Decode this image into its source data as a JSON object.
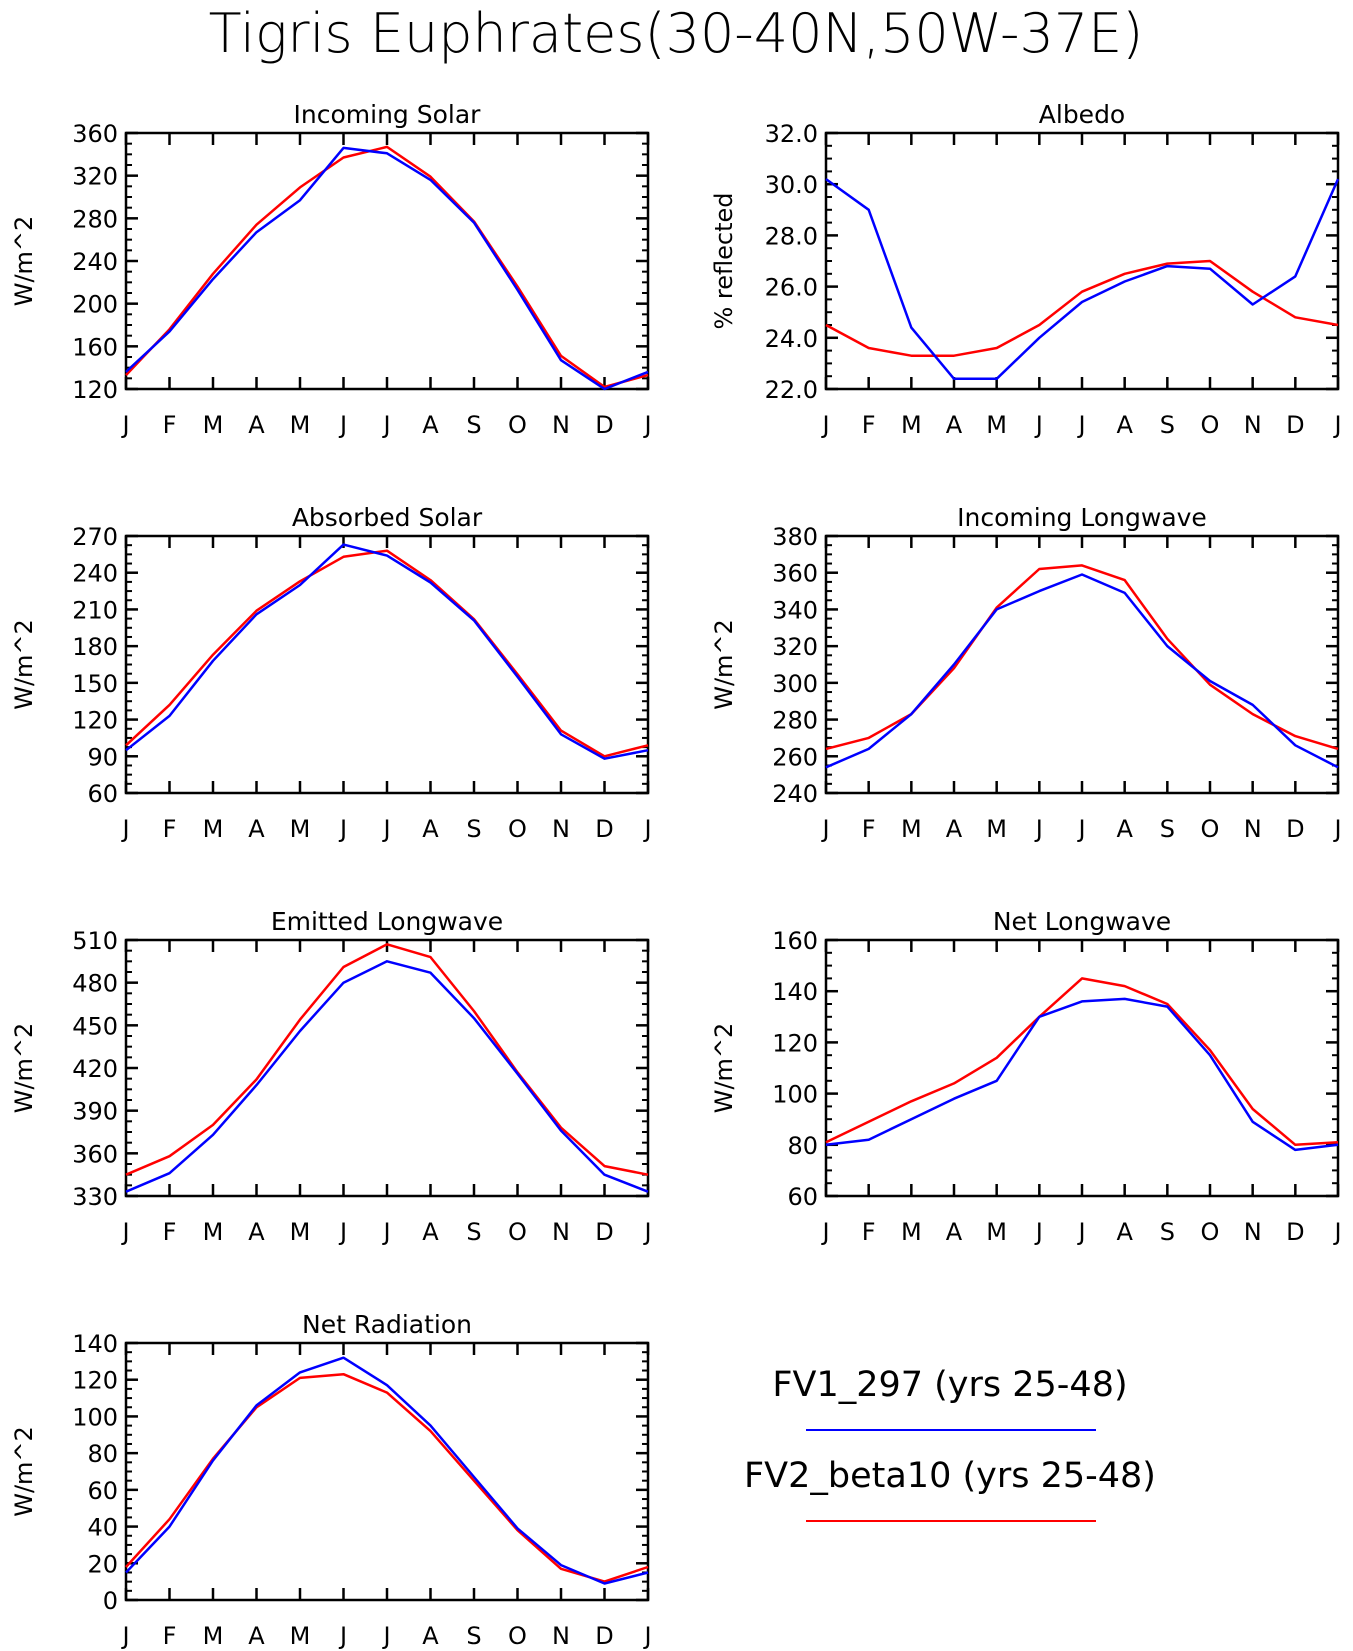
{
  "title": "Tigris Euphrates(30-40N,50W-37E)",
  "colors": {
    "series_1": "#0000ff",
    "series_2": "#ff0000",
    "axis": "#000000"
  },
  "legend": [
    {
      "label": "FV1_297 (yrs 25-48)",
      "color": "#0000ff"
    },
    {
      "label": "FV2_beta10 (yrs 25-48)",
      "color": "#ff0000"
    }
  ],
  "chart_data": [
    {
      "id": "incoming-solar",
      "type": "line",
      "title": "Incoming Solar",
      "ylabel": "W/m^2",
      "categories": [
        "J",
        "F",
        "M",
        "A",
        "M",
        "J",
        "J",
        "A",
        "S",
        "O",
        "N",
        "D",
        "J"
      ],
      "ylim": [
        120,
        360
      ],
      "yticks": [
        "120",
        "160",
        "200",
        "240",
        "280",
        "320",
        "360"
      ],
      "series": [
        {
          "name": "FV1_297 (yrs 25-48)",
          "color": "#0000ff",
          "values": [
            136,
            174,
            223,
            267,
            297,
            346,
            341,
            316,
            276,
            213,
            147,
            120,
            136
          ]
        },
        {
          "name": "FV2_beta10 (yrs 25-48)",
          "color": "#ff0000",
          "values": [
            133,
            176,
            228,
            274,
            309,
            337,
            347,
            319,
            277,
            216,
            151,
            122,
            133
          ]
        }
      ]
    },
    {
      "id": "albedo",
      "type": "line",
      "title": "Albedo",
      "ylabel": "% reflected",
      "categories": [
        "J",
        "F",
        "M",
        "A",
        "M",
        "J",
        "J",
        "A",
        "S",
        "O",
        "N",
        "D",
        "J"
      ],
      "ylim": [
        22.0,
        32.0
      ],
      "yticks": [
        "22.0",
        "24.0",
        "26.0",
        "28.0",
        "30.0",
        "32.0"
      ],
      "series": [
        {
          "name": "FV1_297 (yrs 25-48)",
          "color": "#0000ff",
          "values": [
            30.2,
            29.0,
            24.4,
            22.4,
            22.4,
            24.0,
            25.4,
            26.2,
            26.8,
            26.7,
            25.3,
            26.4,
            30.2
          ]
        },
        {
          "name": "FV2_beta10 (yrs 25-48)",
          "color": "#ff0000",
          "values": [
            24.5,
            23.6,
            23.3,
            23.3,
            23.6,
            24.5,
            25.8,
            26.5,
            26.9,
            27.0,
            25.8,
            24.8,
            24.5
          ]
        }
      ]
    },
    {
      "id": "absorbed-solar",
      "type": "line",
      "title": "Absorbed Solar",
      "ylabel": "W/m^2",
      "categories": [
        "J",
        "F",
        "M",
        "A",
        "M",
        "J",
        "J",
        "A",
        "S",
        "O",
        "N",
        "D",
        "J"
      ],
      "ylim": [
        60,
        270
      ],
      "yticks": [
        "60",
        "90",
        "120",
        "150",
        "180",
        "210",
        "240",
        "270"
      ],
      "series": [
        {
          "name": "FV1_297 (yrs 25-48)",
          "color": "#0000ff",
          "values": [
            95,
            123,
            168,
            206,
            230,
            263,
            254,
            232,
            201,
            155,
            108,
            88,
            95
          ]
        },
        {
          "name": "FV2_beta10 (yrs 25-48)",
          "color": "#ff0000",
          "values": [
            99,
            132,
            173,
            209,
            233,
            253,
            258,
            234,
            202,
            157,
            111,
            90,
            99
          ]
        }
      ]
    },
    {
      "id": "incoming-longwave",
      "type": "line",
      "title": "Incoming Longwave",
      "ylabel": "W/m^2",
      "categories": [
        "J",
        "F",
        "M",
        "A",
        "M",
        "J",
        "J",
        "A",
        "S",
        "O",
        "N",
        "D",
        "J"
      ],
      "ylim": [
        240,
        380
      ],
      "yticks": [
        "240",
        "260",
        "280",
        "300",
        "320",
        "340",
        "360",
        "380"
      ],
      "series": [
        {
          "name": "FV1_297 (yrs 25-48)",
          "color": "#0000ff",
          "values": [
            254,
            264,
            283,
            310,
            340,
            350,
            359,
            349,
            320,
            301,
            288,
            266,
            254
          ]
        },
        {
          "name": "FV2_beta10 (yrs 25-48)",
          "color": "#ff0000",
          "values": [
            264,
            270,
            283,
            308,
            341,
            362,
            364,
            356,
            324,
            299,
            283,
            271,
            264
          ]
        }
      ]
    },
    {
      "id": "emitted-longwave",
      "type": "line",
      "title": "Emitted Longwave",
      "ylabel": "W/m^2",
      "categories": [
        "J",
        "F",
        "M",
        "A",
        "M",
        "J",
        "J",
        "A",
        "S",
        "O",
        "N",
        "D",
        "J"
      ],
      "ylim": [
        330,
        510
      ],
      "yticks": [
        "330",
        "360",
        "390",
        "420",
        "450",
        "480",
        "510"
      ],
      "series": [
        {
          "name": "FV1_297 (yrs 25-48)",
          "color": "#0000ff",
          "values": [
            333,
            346,
            373,
            408,
            446,
            480,
            495,
            487,
            455,
            416,
            376,
            345,
            333
          ]
        },
        {
          "name": "FV2_beta10 (yrs 25-48)",
          "color": "#ff0000",
          "values": [
            345,
            358,
            380,
            412,
            454,
            491,
            507,
            498,
            460,
            417,
            378,
            351,
            345
          ]
        }
      ]
    },
    {
      "id": "net-longwave",
      "type": "line",
      "title": "Net Longwave",
      "ylabel": "W/m^2",
      "categories": [
        "J",
        "F",
        "M",
        "A",
        "M",
        "J",
        "J",
        "A",
        "S",
        "O",
        "N",
        "D",
        "J"
      ],
      "ylim": [
        60,
        160
      ],
      "yticks": [
        "60",
        "80",
        "100",
        "120",
        "140",
        "160"
      ],
      "series": [
        {
          "name": "FV1_297 (yrs 25-48)",
          "color": "#0000ff",
          "values": [
            80,
            82,
            90,
            98,
            105,
            130,
            136,
            137,
            134,
            115,
            89,
            78,
            80
          ]
        },
        {
          "name": "FV2_beta10 (yrs 25-48)",
          "color": "#ff0000",
          "values": [
            81,
            89,
            97,
            104,
            114,
            130,
            145,
            142,
            135,
            117,
            94,
            80,
            81
          ]
        }
      ]
    },
    {
      "id": "net-radiation",
      "type": "line",
      "title": "Net Radiation",
      "ylabel": "W/m^2",
      "categories": [
        "J",
        "F",
        "M",
        "A",
        "M",
        "J",
        "J",
        "A",
        "S",
        "O",
        "N",
        "D",
        "J"
      ],
      "ylim": [
        0,
        140
      ],
      "yticks": [
        "0",
        "20",
        "40",
        "60",
        "80",
        "100",
        "120",
        "140"
      ],
      "series": [
        {
          "name": "FV1_297 (yrs 25-48)",
          "color": "#0000ff",
          "values": [
            15,
            40,
            76,
            106,
            124,
            132,
            117,
            95,
            67,
            39,
            19,
            9,
            15
          ]
        },
        {
          "name": "FV2_beta10 (yrs 25-48)",
          "color": "#ff0000",
          "values": [
            18,
            44,
            77,
            105,
            121,
            123,
            113,
            92,
            65,
            38,
            17,
            10,
            18
          ]
        }
      ]
    }
  ]
}
